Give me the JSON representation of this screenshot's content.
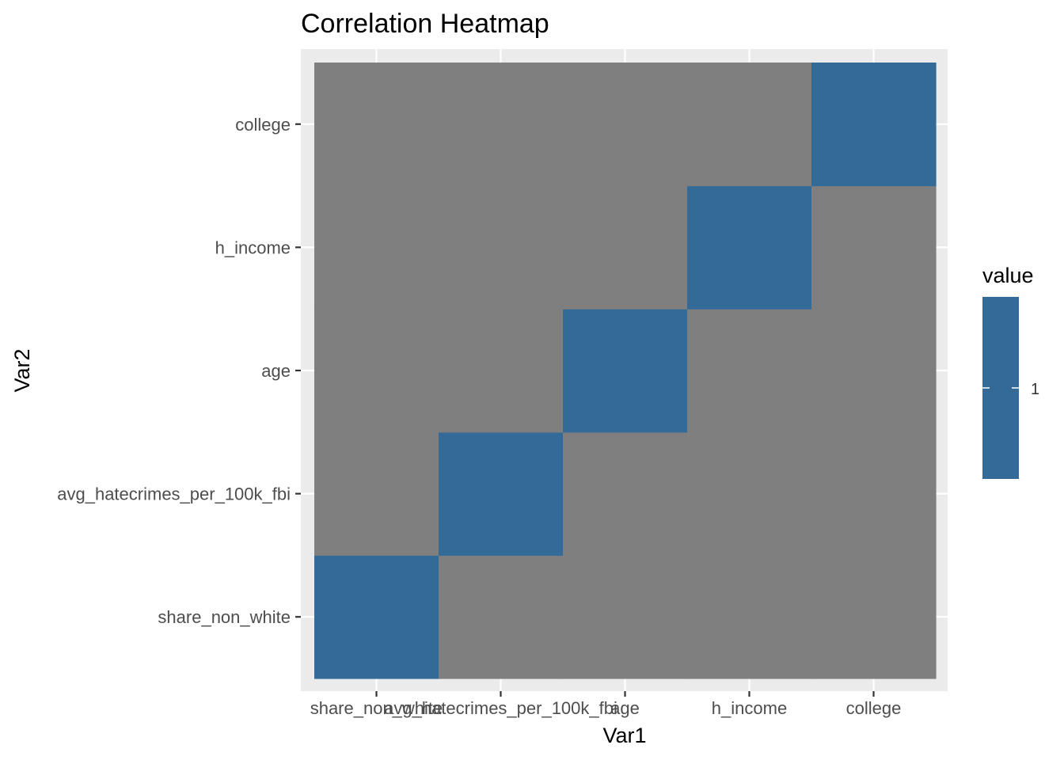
{
  "chart_data": {
    "type": "heatmap",
    "title": "Correlation Heatmap",
    "xlabel": "Var1",
    "ylabel": "Var2",
    "x_categories": [
      "share_non_white",
      "avg_hatecrimes_per_100k_fbi",
      "age",
      "h_income",
      "college"
    ],
    "y_categories": [
      "share_non_white",
      "avg_hatecrimes_per_100k_fbi",
      "age",
      "h_income",
      "college"
    ],
    "cells": [
      {
        "x": "share_non_white",
        "y": "share_non_white",
        "value": 1
      },
      {
        "x": "avg_hatecrimes_per_100k_fbi",
        "y": "avg_hatecrimes_per_100k_fbi",
        "value": 1
      },
      {
        "x": "age",
        "y": "age",
        "value": 1
      },
      {
        "x": "h_income",
        "y": "h_income",
        "value": 1
      },
      {
        "x": "college",
        "y": "college",
        "value": 1
      }
    ],
    "missing_color": "#7f7f7f",
    "value_color": "#346a98",
    "panel_background": "#ebebeb",
    "grid": true,
    "legend": {
      "title": "value",
      "labels": [
        "1"
      ],
      "position": "right"
    }
  }
}
